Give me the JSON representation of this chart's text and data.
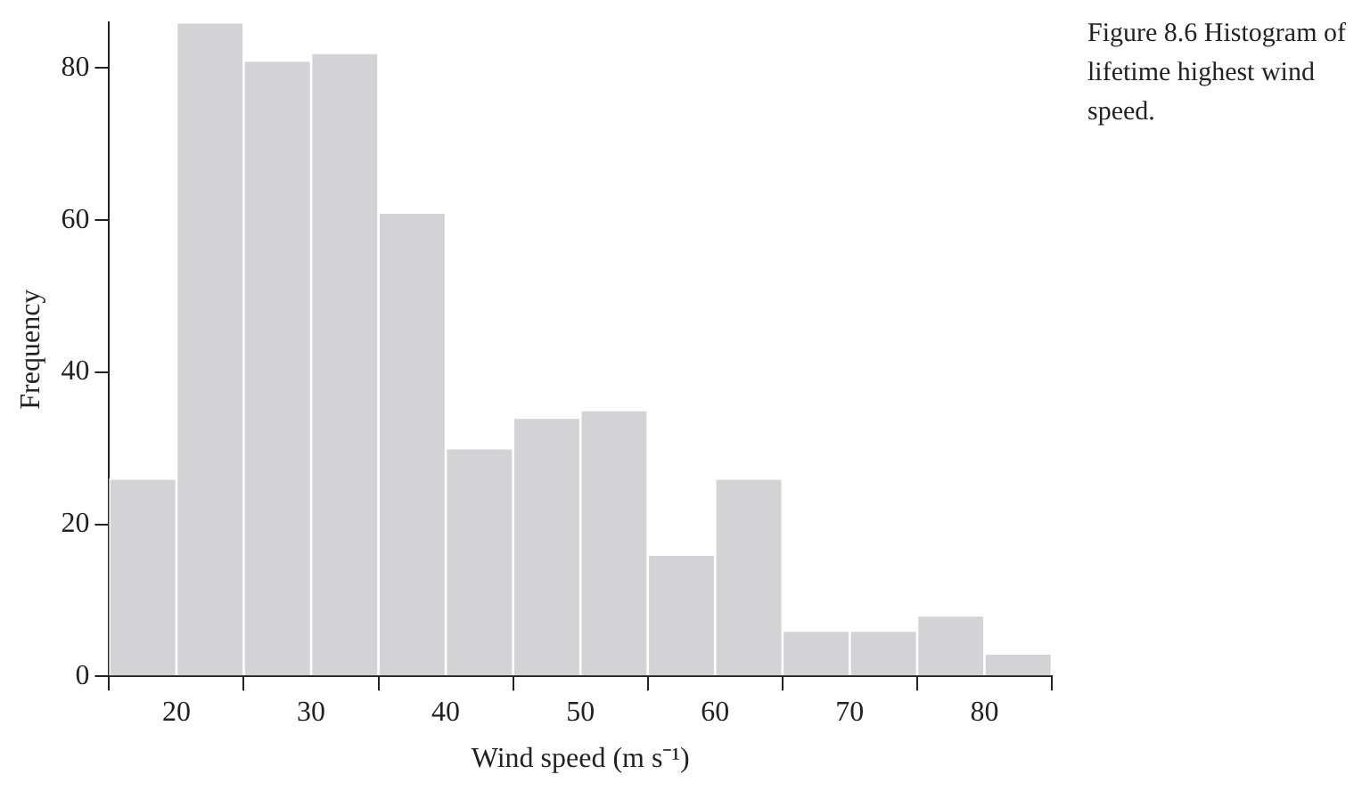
{
  "chart_data": {
    "type": "histogram",
    "title": "Figure 8.6 Histogram of lifetime highest wind speed.",
    "xlabel": "Wind speed (m s⁻¹)",
    "ylabel": "Frequency",
    "bins": [
      15,
      20,
      25,
      30,
      35,
      40,
      45,
      50,
      55,
      60,
      65,
      70,
      75,
      80,
      85
    ],
    "values": [
      26,
      86,
      81,
      82,
      61,
      30,
      34,
      35,
      16,
      26,
      6,
      6,
      8,
      3
    ],
    "color": "#d3d3d5",
    "xlim": [
      15,
      85
    ],
    "xticks": [
      20,
      30,
      40,
      50,
      60,
      70,
      80
    ],
    "ylim": [
      0,
      86
    ],
    "yticks": [
      0,
      20,
      40,
      60,
      80
    ],
    "grid": false,
    "legend": false
  }
}
